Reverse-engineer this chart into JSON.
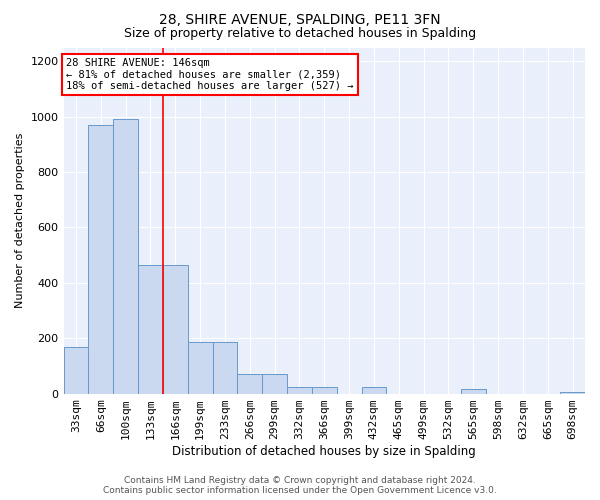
{
  "title1": "28, SHIRE AVENUE, SPALDING, PE11 3FN",
  "title2": "Size of property relative to detached houses in Spalding",
  "xlabel": "Distribution of detached houses by size in Spalding",
  "ylabel": "Number of detached properties",
  "categories": [
    "33sqm",
    "66sqm",
    "100sqm",
    "133sqm",
    "166sqm",
    "199sqm",
    "233sqm",
    "266sqm",
    "299sqm",
    "332sqm",
    "366sqm",
    "399sqm",
    "432sqm",
    "465sqm",
    "499sqm",
    "532sqm",
    "565sqm",
    "598sqm",
    "632sqm",
    "665sqm",
    "698sqm"
  ],
  "values": [
    170,
    970,
    990,
    465,
    465,
    185,
    185,
    70,
    70,
    25,
    25,
    0,
    25,
    0,
    0,
    0,
    15,
    0,
    0,
    0,
    5
  ],
  "bar_color": "#cad9ef",
  "bar_edge_color": "#6699cc",
  "red_line_x": 3.5,
  "annotation_line1": "28 SHIRE AVENUE: 146sqm",
  "annotation_line2": "← 81% of detached houses are smaller (2,359)",
  "annotation_line3": "18% of semi-detached houses are larger (527) →",
  "footer1": "Contains HM Land Registry data © Crown copyright and database right 2024.",
  "footer2": "Contains public sector information licensed under the Open Government Licence v3.0.",
  "background_color": "#eaf0fb",
  "ylim": [
    0,
    1250
  ],
  "yticks": [
    0,
    200,
    400,
    600,
    800,
    1000,
    1200
  ],
  "title1_fontsize": 10,
  "title2_fontsize": 9,
  "xlabel_fontsize": 8.5,
  "ylabel_fontsize": 8,
  "tick_fontsize": 8,
  "footer_fontsize": 6.5
}
